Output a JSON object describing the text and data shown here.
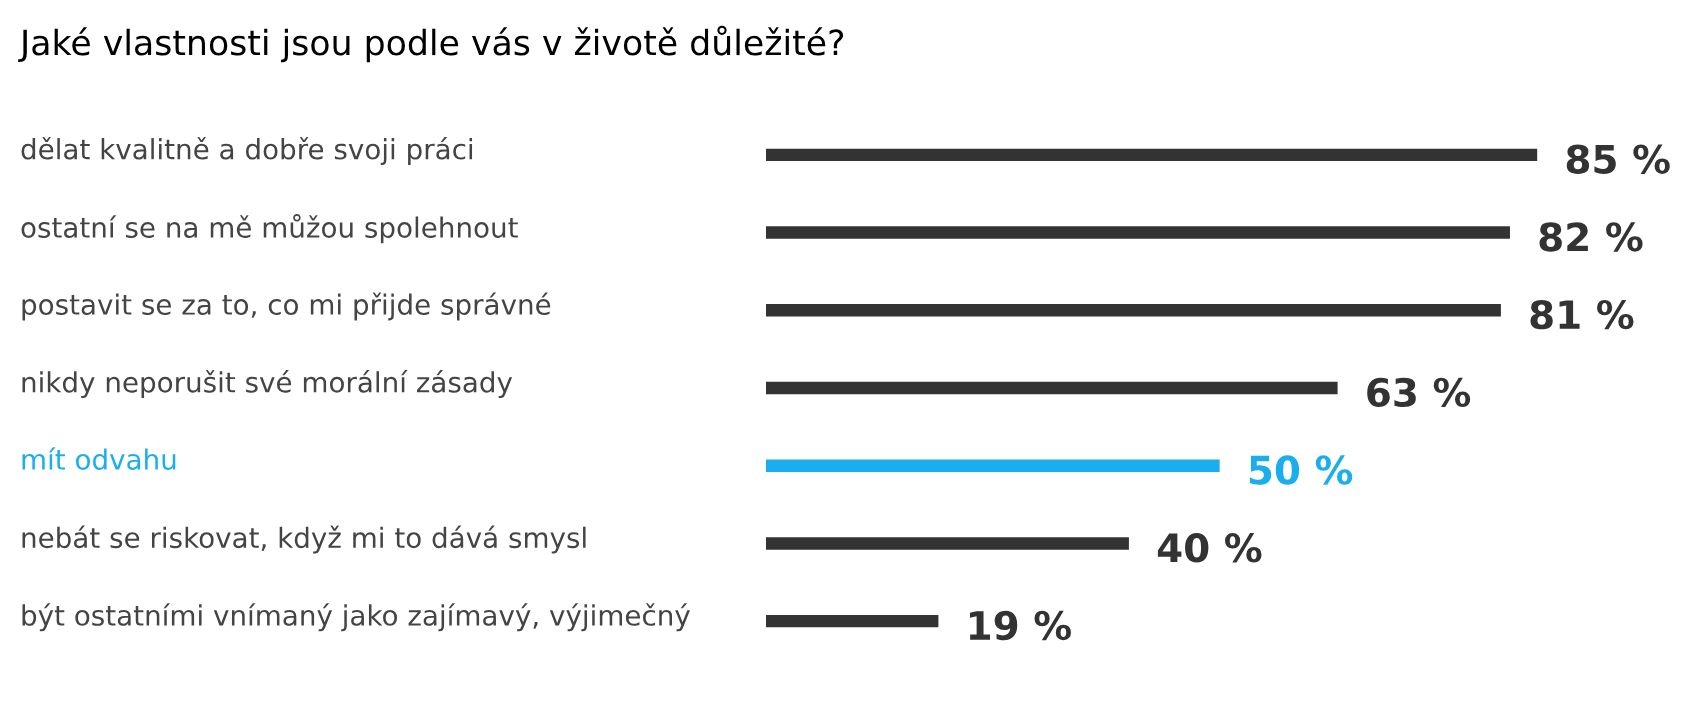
{
  "chart_data": {
    "type": "bar",
    "orientation": "horizontal",
    "title": "Jaké vlastnosti jsou podle vás v životě důležité?",
    "categories": [
      "dělat kvalitně a dobře svoji práci",
      "ostatní se na mě můžou spolehnout",
      "postavit se za to, co mi přijde správné",
      "nikdy neporušit své morální zásady",
      "mít odvahu",
      "nebát se riskovat, když mi to dává smysl",
      "být ostatními vnímaný jako zajímavý, výjimečný"
    ],
    "values": [
      85,
      82,
      81,
      63,
      50,
      40,
      19
    ],
    "colors": [
      "#333333",
      "#333333",
      "#333333",
      "#333333",
      "#1aaeee",
      "#333333",
      "#333333"
    ],
    "value_labels": [
      "85 %",
      "82 %",
      "81 %",
      "63 %",
      "50 %",
      "40 %",
      "19 %"
    ],
    "tick_labels": false,
    "grid": false,
    "legend": false
  }
}
